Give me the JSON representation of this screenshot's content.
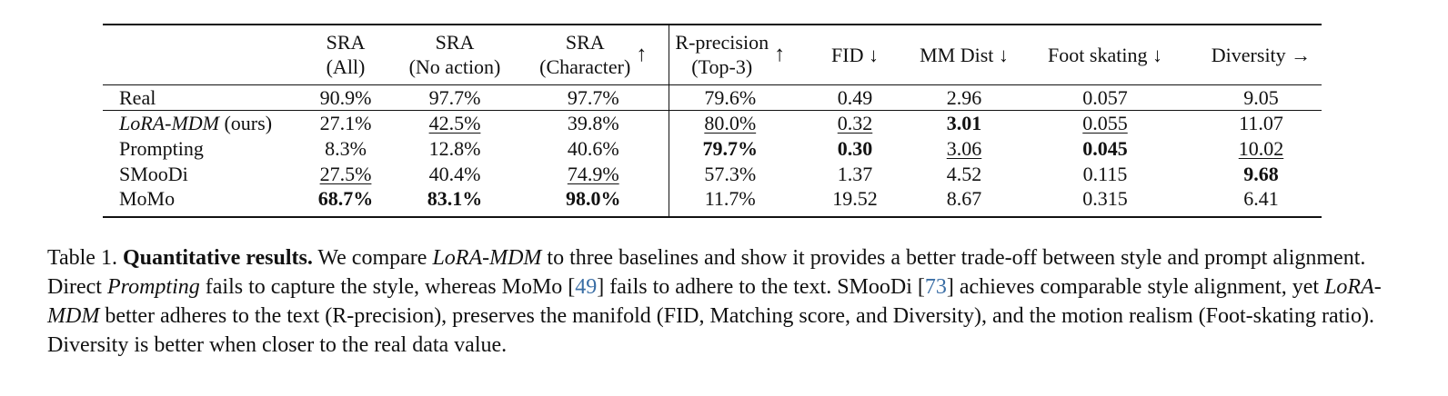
{
  "table": {
    "header": [
      {
        "lines": [
          "SRA",
          "(All)"
        ]
      },
      {
        "lines": [
          "SRA",
          "(No action)"
        ]
      },
      {
        "lines": [
          "SRA",
          "(Character)"
        ],
        "arrow": "↑"
      },
      {
        "lines": [
          "R-precision",
          "(Top-3)"
        ],
        "arrow": "↑"
      },
      {
        "lines": [
          "FID ↓"
        ]
      },
      {
        "lines": [
          "MM Dist ↓"
        ]
      },
      {
        "lines": [
          "Foot skating ↓"
        ]
      },
      {
        "lines": [
          "Diversity →"
        ]
      }
    ],
    "rows": [
      {
        "label": [
          "Real"
        ],
        "values": [
          "90.9%",
          "97.7%",
          "97.7%",
          "79.6%",
          "0.49",
          "2.96",
          "0.057",
          "9.05"
        ]
      },
      {
        "label": [
          "LoRA-MDM",
          "(ours)"
        ],
        "values": [
          "27.1%",
          "42.5%",
          "39.8%",
          "80.0%",
          "0.32",
          "3.01",
          "0.055",
          "11.07"
        ]
      },
      {
        "label": [
          "Prompting"
        ],
        "values": [
          "8.3%",
          "12.8%",
          "40.6%",
          "79.7%",
          "0.30",
          "3.06",
          "0.045",
          "10.02"
        ]
      },
      {
        "label": [
          "SMooDi"
        ],
        "values": [
          "27.5%",
          "40.4%",
          "74.9%",
          "57.3%",
          "1.37",
          "4.52",
          "0.115",
          "9.68"
        ]
      },
      {
        "label": [
          "MoMo"
        ],
        "values": [
          "68.7%",
          "83.1%",
          "98.0%",
          "11.7%",
          "19.52",
          "8.67",
          "0.315",
          "6.41"
        ]
      }
    ]
  },
  "caption": {
    "segments": [
      "Table 1. ",
      "Quantitative results.",
      " We compare ",
      "LoRA-MDM",
      " to three baselines and show it provides a better trade-off between style and prompt alignment. Direct ",
      "Prompting",
      " fails to capture the style, whereas MoMo [",
      "49",
      "] fails to adhere to the text. SMooDi [",
      "73",
      "] achieves comparable style alignment, yet ",
      "LoRA-MDM",
      " better adheres to the text (R-precision), preserves the manifold (FID, Matching score, and Diversity), and the motion realism (Foot-skating ratio). Diversity is better when closer to the real data value."
    ]
  }
}
